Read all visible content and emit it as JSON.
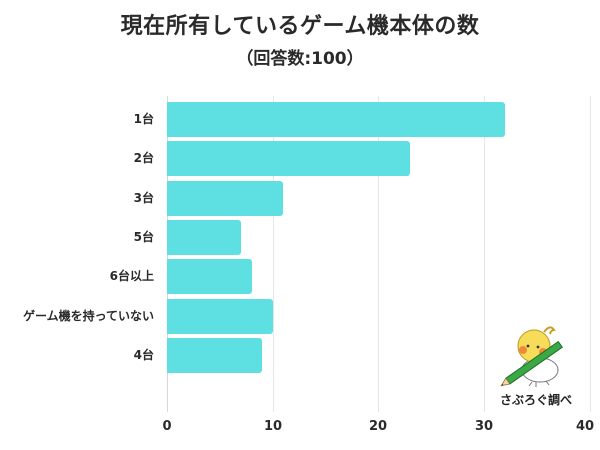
{
  "header": {
    "title": "現在所有しているゲーム機本体の数",
    "subtitle": "（回答数:100）"
  },
  "colors": {
    "bar": "#5ee0e3",
    "grid": "#e6e6e6",
    "text": "#2a2a2a"
  },
  "chart_data": {
    "type": "bar",
    "orientation": "horizontal",
    "title": "現在所有しているゲーム機本体の数",
    "subtitle": "（回答数:100）",
    "categories": [
      "1台",
      "2台",
      "3台",
      "5台",
      "6台以上",
      "ゲーム機を持っていない",
      "4台"
    ],
    "values": [
      32,
      23,
      11,
      7,
      8,
      10,
      9
    ],
    "xlabel": "",
    "ylabel": "",
    "xlim": [
      0,
      40
    ],
    "xticks": [
      "0",
      "10",
      "20",
      "30",
      "40"
    ],
    "grid": true,
    "legend": null
  },
  "axis": {
    "ticks": [
      "0",
      "10",
      "20",
      "30",
      "40"
    ]
  },
  "logo": {
    "text": "さぶろぐ調べ",
    "icon": "bird-mascot-with-pencil-icon"
  }
}
